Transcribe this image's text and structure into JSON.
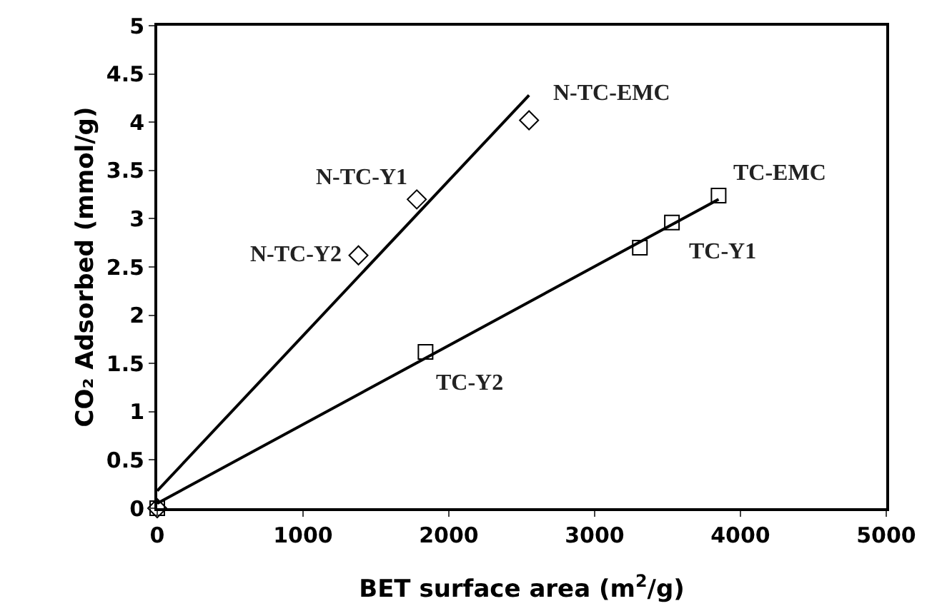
{
  "chart_data": {
    "type": "scatter",
    "xlabel": "BET surface area (m$^{2}$/g)",
    "ylabel": "CO₂ Adsorbed (mmol/g)",
    "xlim": [
      0,
      5000
    ],
    "xticks": [
      0,
      1000,
      2000,
      3000,
      4000,
      5000
    ],
    "ylim": [
      0,
      5
    ],
    "yticks": [
      0,
      0.5,
      1,
      1.5,
      2,
      2.5,
      3,
      3.5,
      4,
      4.5,
      5
    ],
    "grid": false,
    "series": [
      {
        "marker": "diamond",
        "color": "#000000",
        "x": [
          0,
          1380,
          1780,
          2550
        ],
        "values": [
          0,
          2.62,
          3.2,
          4.02
        ]
      },
      {
        "marker": "square",
        "color": "#000000",
        "x": [
          0,
          1840,
          3310,
          3530,
          3850
        ],
        "values": [
          0,
          1.62,
          2.7,
          2.96,
          3.24
        ]
      },
      {
        "type": "line",
        "marker": "none",
        "color": "#000000",
        "x": [
          0,
          2550
        ],
        "values": [
          0.18,
          4.28
        ]
      },
      {
        "type": "line",
        "marker": "none",
        "color": "#000000",
        "x": [
          0,
          3850
        ],
        "values": [
          0.05,
          3.2
        ]
      }
    ],
    "annotations": [
      {
        "text": "N-TC-EMC",
        "x": 2550,
        "y": 4.02
      },
      {
        "text": "N-TC-Y1",
        "x": 1780,
        "y": 3.2
      },
      {
        "text": "N-TC-Y2",
        "x": 1380,
        "y": 2.62
      },
      {
        "text": "TC-EMC",
        "x": 3850,
        "y": 3.24
      },
      {
        "text": "TC-Y1",
        "x": 3530,
        "y": 2.96
      },
      {
        "text": "TC-Y2",
        "x": 1840,
        "y": 1.62
      }
    ]
  }
}
